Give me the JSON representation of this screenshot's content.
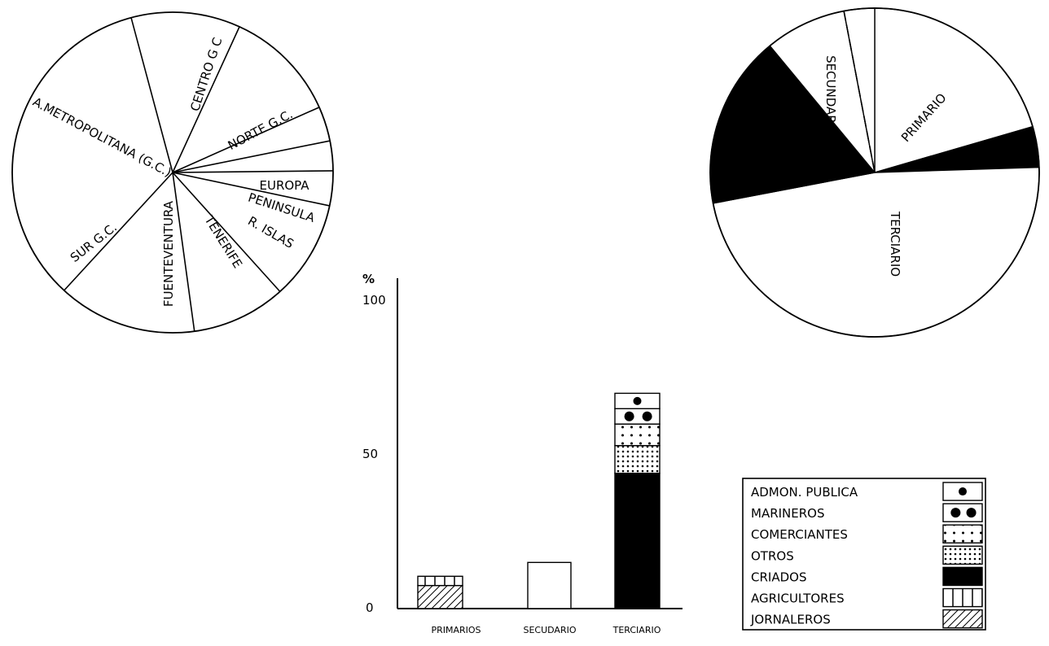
{
  "chart_data": [
    {
      "type": "pie",
      "title": "",
      "slices": [
        {
          "label": "CENTRO G C",
          "value": 11.0
        },
        {
          "label": "NORTE G.C.",
          "value": 11.5
        },
        {
          "label": "EUROPA",
          "value": 3.5
        },
        {
          "label": "PENINSULA",
          "value": 3.0
        },
        {
          "label": "R. ISLAS",
          "value": 3.5
        },
        {
          "label": "TENERIFE",
          "value": 10.0
        },
        {
          "label": "FUENTEVENTURA",
          "value": 9.5
        },
        {
          "label": "SUR G.C.",
          "value": 14.0
        },
        {
          "label": "A.METROPOLITANA (G.C.)",
          "value": 34.0
        }
      ]
    },
    {
      "type": "pie",
      "title": "",
      "slices": [
        {
          "label": "PRIMARIO",
          "value": 20.5,
          "color": "#ffffff"
        },
        {
          "label": "",
          "value": 4.0,
          "color": "#000000"
        },
        {
          "label": "TERCIARIO",
          "value": 47.5,
          "color": "#ffffff"
        },
        {
          "label": "",
          "value": 17.0,
          "color": "#000000"
        },
        {
          "label": "SECUNDARIO",
          "value": 8.0,
          "color": "#ffffff"
        },
        {
          "label": "",
          "value": 3.0,
          "color": "#ffffff"
        }
      ]
    },
    {
      "type": "bar",
      "stacked": true,
      "title": "",
      "ylabel": "%",
      "ylim": [
        0,
        100
      ],
      "yticks": [
        0,
        50,
        100
      ],
      "categories": [
        "PRIMARIOS",
        "SECUDARIO",
        "TERCIARIO"
      ],
      "segments": [
        {
          "category": "PRIMARIOS",
          "legend": "JORNALEROS",
          "value": 7.5
        },
        {
          "category": "PRIMARIOS",
          "legend": "AGRICULTORES",
          "value": 3.0
        },
        {
          "category": "SECUDARIO",
          "legend": "",
          "value": 15
        },
        {
          "category": "TERCIARIO",
          "legend": "CRIADOS",
          "value": 44
        },
        {
          "category": "TERCIARIO",
          "legend": "OTROS",
          "value": 9
        },
        {
          "category": "TERCIARIO",
          "legend": "COMERCIANTES",
          "value": 7
        },
        {
          "category": "TERCIARIO",
          "legend": "MARINEROS",
          "value": 5
        },
        {
          "category": "TERCIARIO",
          "legend": "ADMON. PUBLICA",
          "value": 5
        }
      ],
      "legend": [
        {
          "label": "ADMON. PUBLICA",
          "pattern": "dot-large"
        },
        {
          "label": "MARINEROS",
          "pattern": "dot-double"
        },
        {
          "label": "COMERCIANTES",
          "pattern": "dot-small"
        },
        {
          "label": "OTROS",
          "pattern": "dot-dense"
        },
        {
          "label": "CRIADOS",
          "pattern": "solid"
        },
        {
          "label": "AGRICULTORES",
          "pattern": "vertical"
        },
        {
          "label": "JORNALEROS",
          "pattern": "hatch"
        }
      ],
      "legend_position": "bottom-right"
    }
  ]
}
